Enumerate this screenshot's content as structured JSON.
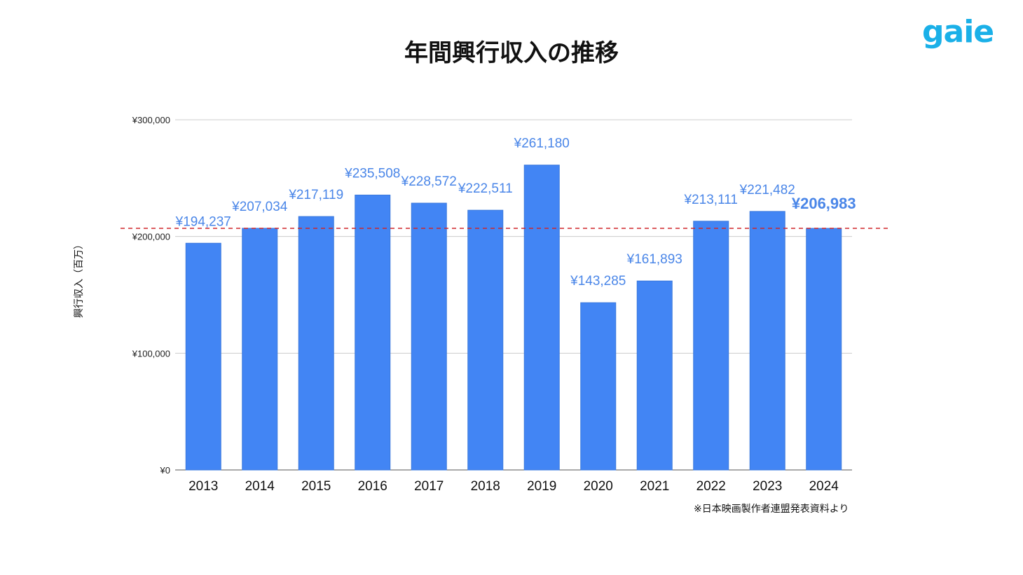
{
  "logo": "gaie",
  "source_note": "※日本映画製作者連盟発表資料より",
  "chart_data": {
    "type": "bar",
    "title": "年間興行収入の推移",
    "xlabel": "",
    "ylabel": "興行収入（百万）",
    "categories": [
      "2013",
      "2014",
      "2015",
      "2016",
      "2017",
      "2018",
      "2019",
      "2020",
      "2021",
      "2022",
      "2023",
      "2024"
    ],
    "values": [
      194237,
      207034,
      217119,
      235508,
      228572,
      222511,
      261180,
      143285,
      161893,
      213111,
      221482,
      206983
    ],
    "data_labels": [
      "¥194,237",
      "¥207,034",
      "¥217,119",
      "¥235,508",
      "¥228,572",
      "¥222,511",
      "¥261,180",
      "¥143,285",
      "¥161,893",
      "¥213,111",
      "¥221,482",
      "¥206,983"
    ],
    "highlighted_label": "2024",
    "ylim": [
      0,
      300000
    ],
    "yticks": [
      0,
      100000,
      200000,
      300000
    ],
    "ytick_labels": [
      "¥0",
      "¥100,000",
      "¥200,000",
      "¥300,000"
    ],
    "grid": true,
    "reference_line": {
      "value": 206983,
      "style": "dashed",
      "color": "#d0262b"
    },
    "bar_color": "#4285f4",
    "label_color": "#4a86e8"
  }
}
